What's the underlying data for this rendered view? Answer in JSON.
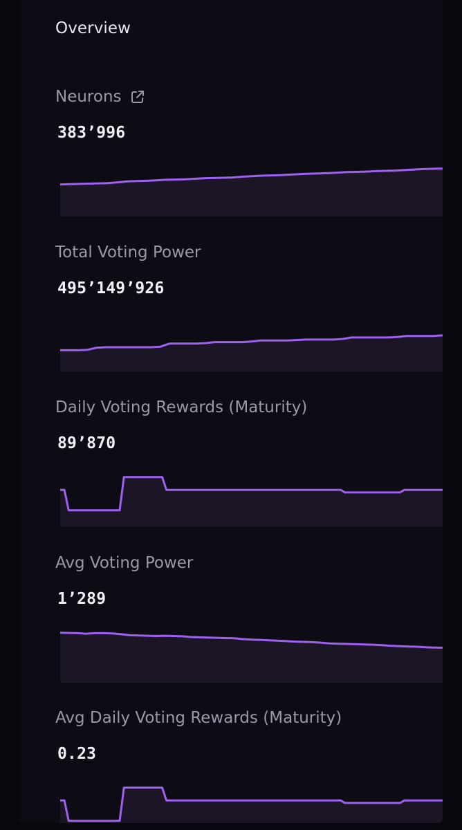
{
  "overview": {
    "title": "Overview"
  },
  "colors": {
    "line": "#9f62f0",
    "fill": "#1b1526",
    "panel": "#0d0c14",
    "background": "#08070d"
  },
  "metrics": [
    {
      "label": "Neurons",
      "has_link_icon": true,
      "value": "383’996",
      "chart_data": {
        "type": "area",
        "values": [
          60,
          60.5,
          61,
          61.5,
          62,
          62.5,
          64,
          66,
          66.5,
          67,
          68,
          69,
          69.5,
          70,
          71,
          72,
          72.5,
          73,
          73.5,
          75,
          76,
          77,
          77.5,
          78,
          79,
          80,
          81,
          81.5,
          82,
          83,
          84,
          84.5,
          85,
          86,
          86.5,
          87,
          88,
          89,
          90,
          90.5,
          91
        ]
      }
    },
    {
      "label": "Total Voting Power",
      "has_link_icon": false,
      "value": "495’149’926",
      "chart_data": {
        "type": "area",
        "values": [
          40,
          40,
          40,
          41,
          45,
          46,
          46,
          46,
          46,
          46,
          46,
          47,
          53,
          53,
          53,
          53,
          54,
          56,
          56,
          56,
          56,
          57,
          59,
          59,
          59,
          59,
          60,
          61,
          61,
          61,
          61,
          62,
          65,
          65,
          65,
          65,
          65,
          66,
          68,
          68,
          68,
          68,
          69
        ]
      }
    },
    {
      "label": "Daily Voting Rewards (Maturity)",
      "has_link_icon": false,
      "value": "89’870",
      "chart_data": {
        "type": "area",
        "values": [
          70,
          70,
          30,
          30,
          30,
          30,
          30,
          30,
          30,
          30,
          30,
          30,
          30,
          30,
          30,
          95,
          95,
          95,
          95,
          95,
          95,
          95,
          95,
          95,
          95,
          70,
          70,
          70,
          70,
          70,
          70,
          70,
          70,
          70,
          70,
          70,
          70,
          70,
          70,
          70,
          70,
          70,
          70,
          70,
          70,
          70,
          70,
          70,
          70,
          70,
          70,
          70,
          70,
          70,
          70,
          70,
          70,
          70,
          70,
          70,
          70,
          70,
          70,
          70,
          70,
          70,
          70,
          65,
          65,
          65,
          65,
          65,
          65,
          65,
          65,
          65,
          65,
          65,
          65,
          65,
          65,
          70,
          70,
          70,
          70,
          70,
          70,
          70,
          70,
          70,
          70
        ]
      }
    },
    {
      "label": "Avg Voting Power",
      "has_link_icon": false,
      "value": "1’289",
      "chart_data": {
        "type": "area",
        "values": [
          95,
          94.5,
          94,
          93,
          94,
          94,
          93.5,
          92,
          90,
          89.5,
          89,
          88.5,
          89,
          88.5,
          88,
          86.5,
          86,
          85.5,
          85,
          84.5,
          84,
          82.5,
          81.5,
          81,
          80,
          79.5,
          78.5,
          77.5,
          77,
          76.5,
          75.5,
          74,
          73.5,
          73,
          72.5,
          72,
          71.5,
          70.5,
          69.5,
          68.5,
          68,
          67.5,
          66.5,
          66,
          65.5
        ]
      }
    },
    {
      "label": "Avg Daily Voting Rewards (Maturity)",
      "has_link_icon": false,
      "value": "0.23",
      "chart_data": {
        "type": "area",
        "values": [
          70,
          70,
          30,
          30,
          30,
          30,
          30,
          30,
          30,
          30,
          30,
          30,
          30,
          30,
          30,
          95,
          95,
          95,
          95,
          95,
          95,
          95,
          95,
          95,
          95,
          70,
          70,
          70,
          70,
          70,
          70,
          70,
          70,
          70,
          70,
          70,
          70,
          70,
          70,
          70,
          70,
          70,
          70,
          70,
          70,
          70,
          70,
          70,
          70,
          70,
          70,
          70,
          70,
          70,
          70,
          70,
          70,
          70,
          70,
          70,
          70,
          70,
          70,
          70,
          70,
          70,
          70,
          65,
          65,
          65,
          65,
          65,
          65,
          65,
          65,
          65,
          65,
          65,
          65,
          65,
          65,
          70,
          70,
          70,
          70,
          70,
          70,
          70,
          70,
          70,
          70
        ]
      }
    }
  ]
}
